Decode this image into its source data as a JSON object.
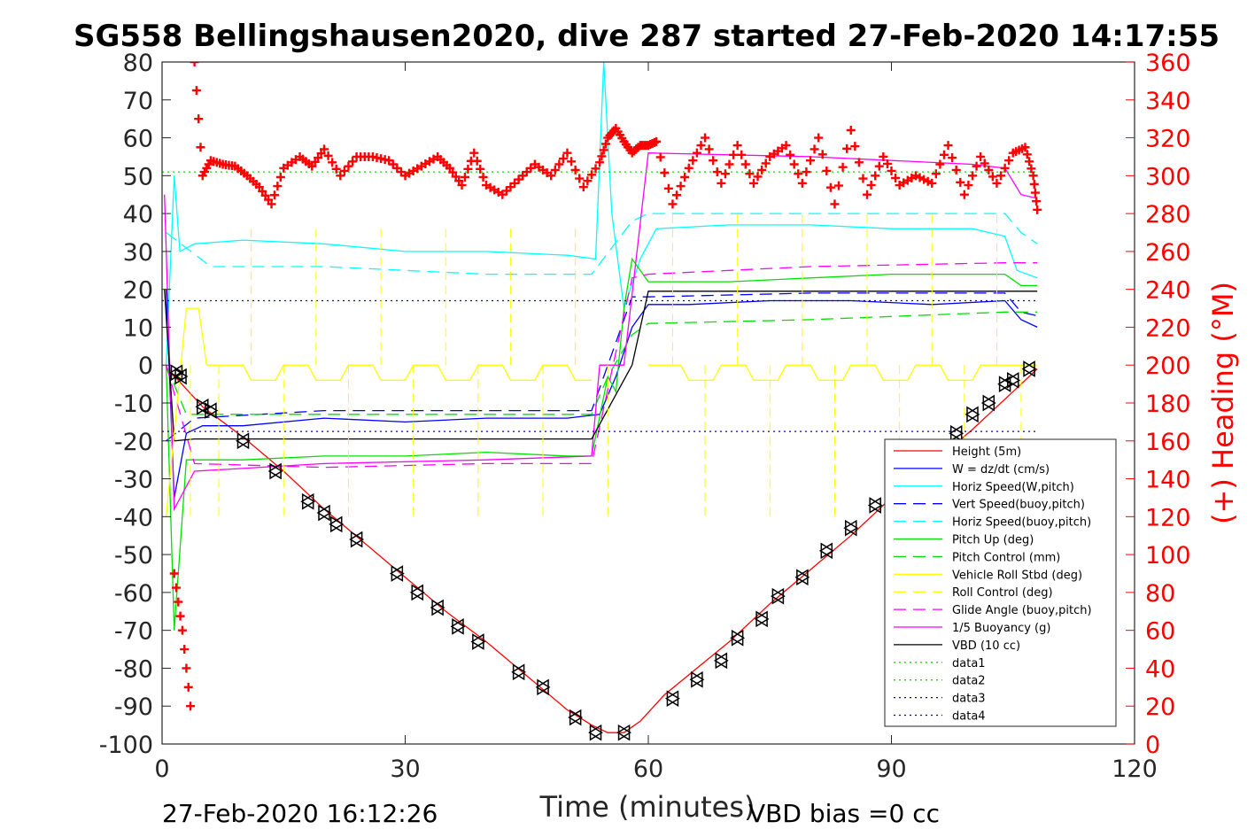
{
  "chart_data": {
    "type": "line",
    "title": "SG558 Bellingshausen2020, dive 287 started 27-Feb-2020 14:17:55",
    "xlabel": "Time (minutes)",
    "ylabel_right": "(+) Heading (°M)",
    "xlim": [
      0,
      120
    ],
    "ylim": [
      -100,
      80
    ],
    "ylim_right": [
      0,
      360
    ],
    "x_ticks": [
      "0",
      "30",
      "60",
      "90",
      "120"
    ],
    "y_ticks": [
      "80",
      "70",
      "60",
      "50",
      "40",
      "30",
      "20",
      "10",
      "0",
      "-10",
      "-20",
      "-30",
      "-40",
      "-50",
      "-60",
      "-70",
      "-80",
      "-90",
      "-100"
    ],
    "y_ticks_right": [
      "360",
      "340",
      "320",
      "300",
      "280",
      "260",
      "240",
      "220",
      "200",
      "180",
      "160",
      "140",
      "120",
      "100",
      "80",
      "60",
      "40",
      "20",
      "0"
    ],
    "grid": false,
    "legend_position": "lower-right",
    "footer_left": "27-Feb-2020 16:12:26",
    "footer_right": "VBD bias =0 cc",
    "colors": {
      "red": "#ff0000",
      "blue": "#0000ff",
      "cyan": "#00ffff",
      "green": "#00e000",
      "yellow": "#ffff00",
      "magenta": "#ff00ff",
      "black": "#000000",
      "darkred": "#a00000"
    },
    "legend": [
      {
        "name": "Height (5m)",
        "color": "#ff0000",
        "dash": "solid"
      },
      {
        "name": "W = dz/dt (cm/s)",
        "color": "#0000ff",
        "dash": "solid"
      },
      {
        "name": "Horiz Speed(W,pitch)",
        "color": "#00ffff",
        "dash": "solid"
      },
      {
        "name": "Vert Speed(buoy,pitch)",
        "color": "#0000ff",
        "dash": "dashed"
      },
      {
        "name": "Horiz Speed(buoy,pitch)",
        "color": "#00ffff",
        "dash": "dashed"
      },
      {
        "name": "Pitch Up (deg)",
        "color": "#00e000",
        "dash": "solid"
      },
      {
        "name": "Pitch Control (mm)",
        "color": "#00e000",
        "dash": "dashed"
      },
      {
        "name": "Vehicle Roll Stbd (deg)",
        "color": "#ffff00",
        "dash": "solid"
      },
      {
        "name": "Roll Control (deg)",
        "color": "#ffff00",
        "dash": "dashed"
      },
      {
        "name": "Glide Angle (buoy,pitch)",
        "color": "#ff00ff",
        "dash": "dashed"
      },
      {
        "name": "1/5 Buoyancy (g)",
        "color": "#ff00ff",
        "dash": "solid"
      },
      {
        "name": "VBD (10 cc)",
        "color": "#000000",
        "dash": "solid"
      },
      {
        "name": "data1",
        "color": "#00e000",
        "dash": "dotted"
      },
      {
        "name": "data2",
        "color": "#00e000",
        "dash": "dotted"
      },
      {
        "name": "data3",
        "color": "#0000aa",
        "dash": "dotted"
      },
      {
        "name": "data4",
        "color": "#0000aa",
        "dash": "dotted"
      }
    ],
    "series": [
      {
        "name": "Height (5m)",
        "axis": "left",
        "color": "#ff0000",
        "x": [
          0.5,
          2,
          5,
          10,
          15,
          20,
          25,
          30,
          35,
          40,
          45,
          50,
          53,
          55,
          57,
          59,
          62,
          66,
          70,
          75,
          80,
          85,
          90,
          95,
          100,
          105,
          108
        ],
        "y": [
          -1,
          -4,
          -11,
          -19,
          -28,
          -38,
          -47,
          -56,
          -65,
          -73,
          -82,
          -91,
          -95,
          -97,
          -97,
          -94,
          -87,
          -80,
          -73,
          -63,
          -54,
          -45,
          -35,
          -26,
          -17,
          -7,
          -1
        ]
      },
      {
        "name": "Height markers",
        "axis": "left",
        "color": "#000000",
        "x": [
          1.8,
          2.3,
          5.0,
          6.0,
          10.0,
          14.0,
          18.0,
          20.0,
          21.5,
          24.0,
          29.0,
          31.5,
          34.0,
          36.5,
          39.0,
          44.0,
          47.0,
          51.0,
          53.5,
          57.0,
          63.0,
          66.0,
          69.0,
          71.0,
          74.0,
          76.0,
          79.0,
          82.0,
          85.0,
          88.0,
          93.0,
          98.0,
          100.0,
          102.0,
          104.0,
          105.0,
          107.0
        ],
        "y": [
          -2,
          -3,
          -11,
          -12,
          -20,
          -28,
          -36,
          -39,
          -42,
          -46,
          -55,
          -60,
          -64,
          -69,
          -73,
          -81,
          -85,
          -93,
          -97,
          -97,
          -88,
          -83,
          -78,
          -72,
          -67,
          -61,
          -56,
          -49,
          -43,
          -37,
          -27,
          -18,
          -13,
          -10,
          -5,
          -4,
          -1
        ]
      },
      {
        "name": "W = dz/dt (cm/s)",
        "axis": "left",
        "color": "#0000ff",
        "x": [
          0.5,
          1.5,
          3,
          5,
          10,
          20,
          30,
          40,
          50,
          54,
          56,
          58,
          60,
          65,
          75,
          85,
          95,
          104,
          106,
          108
        ],
        "y": [
          20,
          -35,
          -18,
          -16,
          -16,
          -14,
          -15,
          -14,
          -14,
          -13,
          -3,
          10,
          16,
          16,
          17,
          17,
          16,
          17,
          12,
          10
        ]
      },
      {
        "name": "Horiz Speed(W,pitch)",
        "axis": "left",
        "color": "#00ffff",
        "x": [
          0.5,
          1.5,
          2.2,
          4,
          10,
          20,
          30,
          40,
          50,
          53.5,
          54.5,
          55.5,
          57,
          59,
          61,
          70,
          80,
          90,
          100,
          104,
          105.5,
          108
        ],
        "y": [
          0,
          50,
          30,
          32,
          33,
          32,
          30,
          30,
          29,
          28,
          80,
          40,
          15,
          28,
          36,
          37,
          37,
          36,
          36,
          34,
          25,
          23
        ]
      },
      {
        "name": "Vert Speed(buoy,pitch)",
        "axis": "left",
        "color": "#0000ff",
        "x": [
          0.5,
          4,
          20,
          40,
          53,
          58,
          60,
          80,
          104,
          106,
          108
        ],
        "y": [
          -20,
          -14,
          -12,
          -12,
          -12,
          18,
          18,
          19,
          19,
          14,
          13
        ]
      },
      {
        "name": "Horiz Speed(buoy,pitch)",
        "axis": "left",
        "color": "#00ffff",
        "x": [
          0.5,
          6,
          20,
          40,
          53,
          58,
          60,
          80,
          104,
          106,
          108
        ],
        "y": [
          35,
          26,
          26,
          24,
          24,
          38,
          40,
          40,
          40,
          35,
          32
        ]
      },
      {
        "name": "Pitch Up (deg)",
        "axis": "left",
        "color": "#00e000",
        "x": [
          0.5,
          1.5,
          3,
          10,
          20,
          30,
          40,
          50,
          53,
          55,
          56,
          57,
          58,
          60,
          70,
          80,
          90,
          104,
          106,
          108
        ],
        "y": [
          0,
          -70,
          -25,
          -25,
          -24,
          -24,
          -23,
          -24,
          -24,
          -3,
          -7,
          15,
          28,
          22,
          22,
          23,
          24,
          24,
          21,
          21
        ]
      },
      {
        "name": "Pitch Control (mm)",
        "axis": "left",
        "color": "#00e000",
        "x": [
          0.5,
          3,
          20,
          40,
          53,
          55,
          58,
          60,
          80,
          104,
          108
        ],
        "y": [
          0,
          -13,
          -13,
          -13,
          -13,
          -3,
          8,
          11,
          12,
          14,
          14
        ]
      },
      {
        "name": "Glide Angle (buoy,pitch)",
        "axis": "left",
        "color": "#ff00ff",
        "x": [
          0.5,
          4,
          20,
          40,
          53,
          58,
          60,
          80,
          104,
          108
        ],
        "y": [
          0,
          -26,
          -27,
          -26,
          -26,
          23,
          24,
          26,
          27,
          27
        ]
      },
      {
        "name": "1/5 Buoyancy (g)",
        "axis": "left",
        "color": "#ff00ff",
        "x": [
          0.3,
          1.5,
          4,
          20,
          40,
          53,
          54,
          57,
          60,
          80,
          100,
          104,
          106,
          108
        ],
        "y": [
          45,
          -38,
          -28,
          -26,
          -25,
          -24,
          0,
          0,
          56,
          55,
          53,
          52,
          45,
          44
        ]
      },
      {
        "name": "VBD (10 cc)",
        "axis": "left",
        "color": "#000000",
        "x": [
          0.3,
          1.5,
          4,
          53,
          58,
          60,
          104,
          106,
          108
        ],
        "y": [
          20,
          -20,
          -19.5,
          -19.5,
          0,
          19.5,
          19.5,
          19.5,
          19.5
        ]
      },
      {
        "name": "data2",
        "axis": "left",
        "color": "#00e000",
        "x": [
          0,
          108
        ],
        "y": [
          51,
          51
        ]
      },
      {
        "name": "data3",
        "axis": "left",
        "color": "#0000aa",
        "x": [
          0,
          108
        ],
        "y": [
          17,
          17
        ]
      },
      {
        "name": "data4",
        "axis": "left",
        "color": "#0000aa",
        "x": [
          0,
          108
        ],
        "y": [
          -17.5,
          -17.5
        ]
      },
      {
        "name": "Vehicle Roll Stbd (deg)",
        "axis": "left",
        "color": "#ffff00",
        "segments": [
          {
            "x": [
              0.5,
              3,
              4.5,
              5.5
            ],
            "y": [
              -40,
              15,
              15,
              0
            ]
          },
          {
            "x": [
              5.5,
              10,
              11,
              14,
              15,
              18,
              19,
              22,
              23,
              26,
              27,
              30,
              31,
              34,
              35,
              38,
              39,
              42,
              43,
              46,
              47,
              50,
              51,
              53
            ],
            "y": [
              0,
              0,
              -4,
              -4,
              0,
              0,
              -4,
              -4,
              0,
              0,
              -4,
              -4,
              0,
              0,
              -4,
              -4,
              0,
              0,
              -4,
              -4,
              0,
              0,
              -4,
              -4
            ]
          },
          {
            "x": [
              60,
              64,
              65,
              68,
              69,
              72,
              73,
              76,
              77,
              80,
              81,
              84,
              85,
              88,
              89,
              92,
              93,
              96,
              97,
              100,
              101,
              104,
              106,
              108
            ],
            "y": [
              0,
              0,
              -4,
              -4,
              0,
              0,
              -4,
              -4,
              0,
              0,
              -4,
              -4,
              0,
              0,
              -4,
              -4,
              0,
              0,
              -4,
              -4,
              0,
              0,
              0,
              0
            ]
          }
        ]
      },
      {
        "name": "Roll Control (deg)",
        "axis": "left",
        "color": "#ffff00",
        "spikes_x": [
          3.5,
          7,
          11,
          15,
          19,
          23,
          27,
          31,
          35,
          39,
          43,
          47,
          51,
          55,
          63,
          67,
          71,
          75,
          79,
          83,
          87,
          91,
          95,
          99,
          103,
          106
        ],
        "spikes_y": [
          -40,
          -40,
          37,
          -40,
          37,
          -40,
          37,
          -40,
          37,
          -40,
          37,
          -40,
          37,
          -40,
          40,
          -40,
          40,
          -40,
          40,
          -40,
          40,
          -40,
          40,
          -40,
          40,
          -20
        ]
      },
      {
        "name": "Heading",
        "axis": "right",
        "color": "#ff0000",
        "marker": "+",
        "x": [
          1.5,
          2.5,
          3.5,
          4.0,
          5.0,
          6.0,
          7.5,
          9.0,
          10.5,
          12.0,
          13.5,
          15.0,
          17.0,
          18.5,
          20.0,
          22.0,
          24.0,
          26.0,
          28.0,
          30.0,
          32.0,
          34.0,
          35.5,
          37.0,
          38.5,
          40.0,
          42.0,
          44.0,
          46.0,
          48.0,
          50.0,
          52.0,
          54.0,
          55.0,
          56.0,
          57.0,
          58.0,
          59.0,
          60.0,
          61.0,
          63.0,
          65.0,
          67.0,
          69.0,
          71.0,
          73.0,
          75.0,
          77.0,
          79.0,
          81.0,
          83.0,
          85.0,
          87.0,
          89.0,
          91.0,
          93.0,
          95.0,
          97.0,
          99.0,
          101.0,
          103.0,
          105.0,
          106.5,
          107.5,
          108.0
        ],
        "y": [
          90,
          60,
          20,
          360,
          300,
          308,
          306,
          305,
          300,
          294,
          285,
          304,
          310,
          305,
          314,
          300,
          310,
          310,
          308,
          300,
          305,
          310,
          304,
          295,
          312,
          295,
          290,
          298,
          306,
          300,
          312,
          294,
          307,
          320,
          325,
          318,
          312,
          316,
          316,
          318,
          285,
          304,
          320,
          296,
          316,
          296,
          310,
          316,
          296,
          320,
          285,
          324,
          290,
          310,
          295,
          300,
          296,
          316,
          290,
          310,
          296,
          312,
          315,
          300,
          282
        ]
      }
    ]
  }
}
